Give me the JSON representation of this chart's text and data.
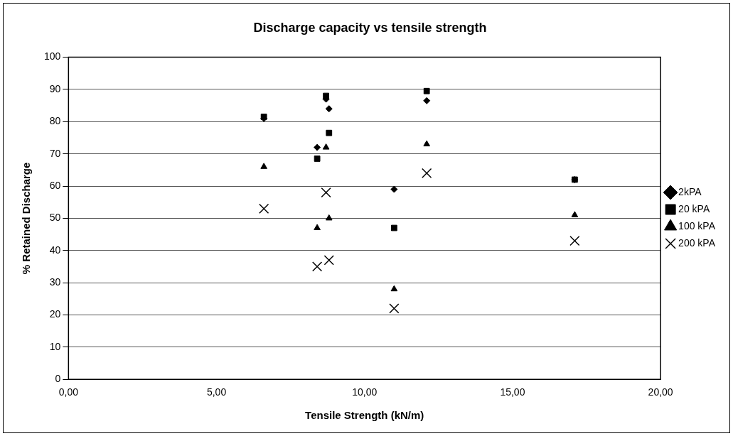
{
  "chart_data": {
    "type": "scatter",
    "title": "Discharge capacity vs tensile strength",
    "xlabel": "Tensile Strength (kN/m)",
    "ylabel": "% Retained Discharge",
    "x": [
      6.6,
      8.4,
      8.7,
      8.8,
      11.0,
      12.1,
      17.1
    ],
    "series": [
      {
        "name": "2kPA",
        "color": "#000000",
        "marker": "diamond",
        "values": [
          81,
          72,
          87,
          84,
          59,
          86.5,
          62
        ]
      },
      {
        "name": "20 kPA",
        "color": "#000000",
        "marker": "square",
        "values": [
          81.5,
          68.5,
          88,
          76.5,
          47,
          89.5,
          62
        ]
      },
      {
        "name": "100 kPA",
        "color": "#000000",
        "marker": "triangle",
        "values": [
          66,
          47,
          72,
          50,
          28,
          73,
          51
        ]
      },
      {
        "name": "200 kPA",
        "color": "#000000",
        "marker": "cross",
        "values": [
          53,
          35,
          58,
          37,
          22,
          64,
          43
        ]
      }
    ],
    "xlim": [
      0,
      20
    ],
    "xticks": [
      {
        "value": 0,
        "label": "0,00"
      },
      {
        "value": 5,
        "label": "5,00"
      },
      {
        "value": 10,
        "label": "10,00"
      },
      {
        "value": 15,
        "label": "15,00"
      },
      {
        "value": 20,
        "label": "20,00"
      }
    ],
    "ylim": [
      0,
      100
    ],
    "yticks": [
      0,
      10,
      20,
      30,
      40,
      50,
      60,
      70,
      80,
      90,
      100
    ],
    "grid": "y",
    "legend": "right"
  }
}
